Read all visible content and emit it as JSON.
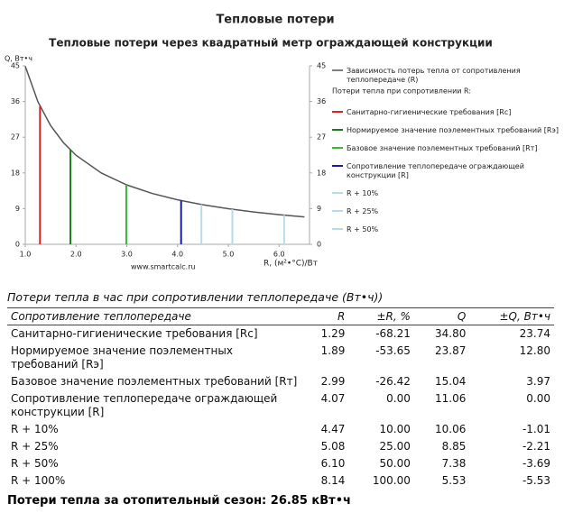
{
  "chart_data": {
    "type": "line",
    "title": "Тепловые потери",
    "subtitle": "Тепловые потери через квадратный метр ограждающей конструкции",
    "y_label": "Q, Вт•ч",
    "x_label": "R, (м²•°C)/Вт",
    "watermark": "www.smartcalc.ru",
    "xlim": [
      1.0,
      6.6
    ],
    "xticks": [
      {
        "value": 1,
        "label": "1.0"
      },
      {
        "value": 2,
        "label": "2.0"
      },
      {
        "value": 3,
        "label": "3.0"
      },
      {
        "value": 4,
        "label": "4.0"
      },
      {
        "value": 5,
        "label": "5.0"
      },
      {
        "value": 6,
        "label": "6.0"
      }
    ],
    "ylim": [
      0,
      45
    ],
    "yticks": [
      0,
      9,
      18,
      27,
      36,
      45
    ],
    "x": [
      1.0,
      1.25,
      1.5,
      1.75,
      2,
      2.5,
      3,
      3.5,
      4,
      4.5,
      5,
      5.5,
      6,
      6.5
    ],
    "series": [
      {
        "name": "Зависимость потерь тепла от сопротивления теплопередаче (R)",
        "color": "#555555",
        "values": [
          44.9,
          35.92,
          29.93,
          25.66,
          22.45,
          17.96,
          14.97,
          12.83,
          11.23,
          9.98,
          8.98,
          8.16,
          7.48,
          6.91
        ]
      }
    ],
    "legend_heading": "Потери тепла при сопротивлении R:",
    "markers": [
      {
        "name": "Санитарно-гигиенические требования [Rс]",
        "color": "#e02020",
        "x": 1.29,
        "value": 34.8
      },
      {
        "name": "Нормируемое значение поэлементных требований [Rэ]",
        "color": "#1d7a1d",
        "x": 1.89,
        "value": 23.87
      },
      {
        "name": "Базовое значение поэлементных требований [Rт]",
        "color": "#33bb33",
        "x": 2.99,
        "value": 15.04
      },
      {
        "name": "Сопротивление теплопередаче ограждающей конструкции [R]",
        "color": "#1a1aaa",
        "x": 4.07,
        "value": 11.06
      },
      {
        "name": "R + 10%",
        "color": "#b6dde6",
        "x": 4.47,
        "value": 10.06
      },
      {
        "name": "R + 25%",
        "color": "#b6dde6",
        "x": 5.08,
        "value": 8.85
      },
      {
        "name": "R + 50%",
        "color": "#b6dde6",
        "x": 6.1,
        "value": 7.38
      }
    ]
  },
  "table": {
    "title": "Потери тепла в час при сопротивлении теплопередаче (Вт•ч))",
    "header": [
      "Сопротивление теплопередаче",
      "R",
      "±R, %",
      "Q",
      "±Q, Вт•ч"
    ],
    "rows": [
      [
        "Санитарно-гигиенические требования [Rс]",
        "1.29",
        "-68.21",
        "34.80",
        "23.74"
      ],
      [
        "Нормируемое значение поэлементных требований [Rэ]",
        "1.89",
        "-53.65",
        "23.87",
        "12.80"
      ],
      [
        "Базовое значение поэлементных требований [Rт]",
        "2.99",
        "-26.42",
        "15.04",
        "3.97"
      ],
      [
        "Сопротивление теплопередаче ограждающей конструкции [R]",
        "4.07",
        "0.00",
        "11.06",
        "0.00"
      ],
      [
        "R + 10%",
        "4.47",
        "10.00",
        "10.06",
        "-1.01"
      ],
      [
        "R + 25%",
        "5.08",
        "25.00",
        "8.85",
        "-2.21"
      ],
      [
        "R + 50%",
        "6.10",
        "50.00",
        "7.38",
        "-3.69"
      ],
      [
        "R + 100%",
        "8.14",
        "100.00",
        "5.53",
        "-5.53"
      ]
    ]
  },
  "footer": "Потери тепла за отопительный сезон: 26.85 кВт•ч"
}
